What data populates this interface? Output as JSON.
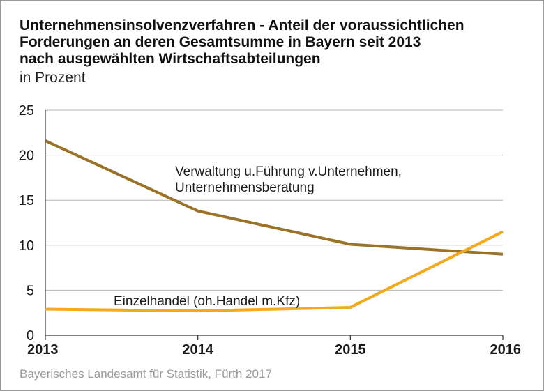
{
  "header": {
    "title_lines": [
      "Unternehmensinsolvenzverfahren - Anteil der voraussichtlichen",
      "Forderungen an deren Gesamtsumme in Bayern seit 2013",
      "nach ausgewählten Wirtschaftsabteilungen"
    ],
    "subtitle": "in Prozent"
  },
  "footer": {
    "source": "Bayerisches Landesamt für Statistik, Fürth 2017"
  },
  "chart_data": {
    "type": "line",
    "title": "Unternehmensinsolvenzverfahren - Anteil der voraussichtlichen Forderungen an deren Gesamtsumme in Bayern seit 2013 nach ausgewählten Wirtschaftsabteilungen",
    "subtitle": "in Prozent",
    "x": [
      "2013",
      "2014",
      "2015",
      "2016"
    ],
    "ylim": [
      0,
      25
    ],
    "yticks": [
      0,
      5,
      10,
      15,
      20,
      25
    ],
    "grid": true,
    "legend": "inline labels",
    "series": [
      {
        "name_lines": [
          "Verwaltung u.Führung v.Unternehmen,",
          "Unternehmensberatung"
        ],
        "values": [
          21.6,
          13.8,
          10.1,
          9.0
        ],
        "color": "#9b7328"
      },
      {
        "name_lines": [
          "Einzelhandel (oh.Handel m.Kfz)"
        ],
        "values": [
          2.9,
          2.7,
          3.1,
          11.5
        ],
        "color": "#f5a91a"
      }
    ]
  }
}
